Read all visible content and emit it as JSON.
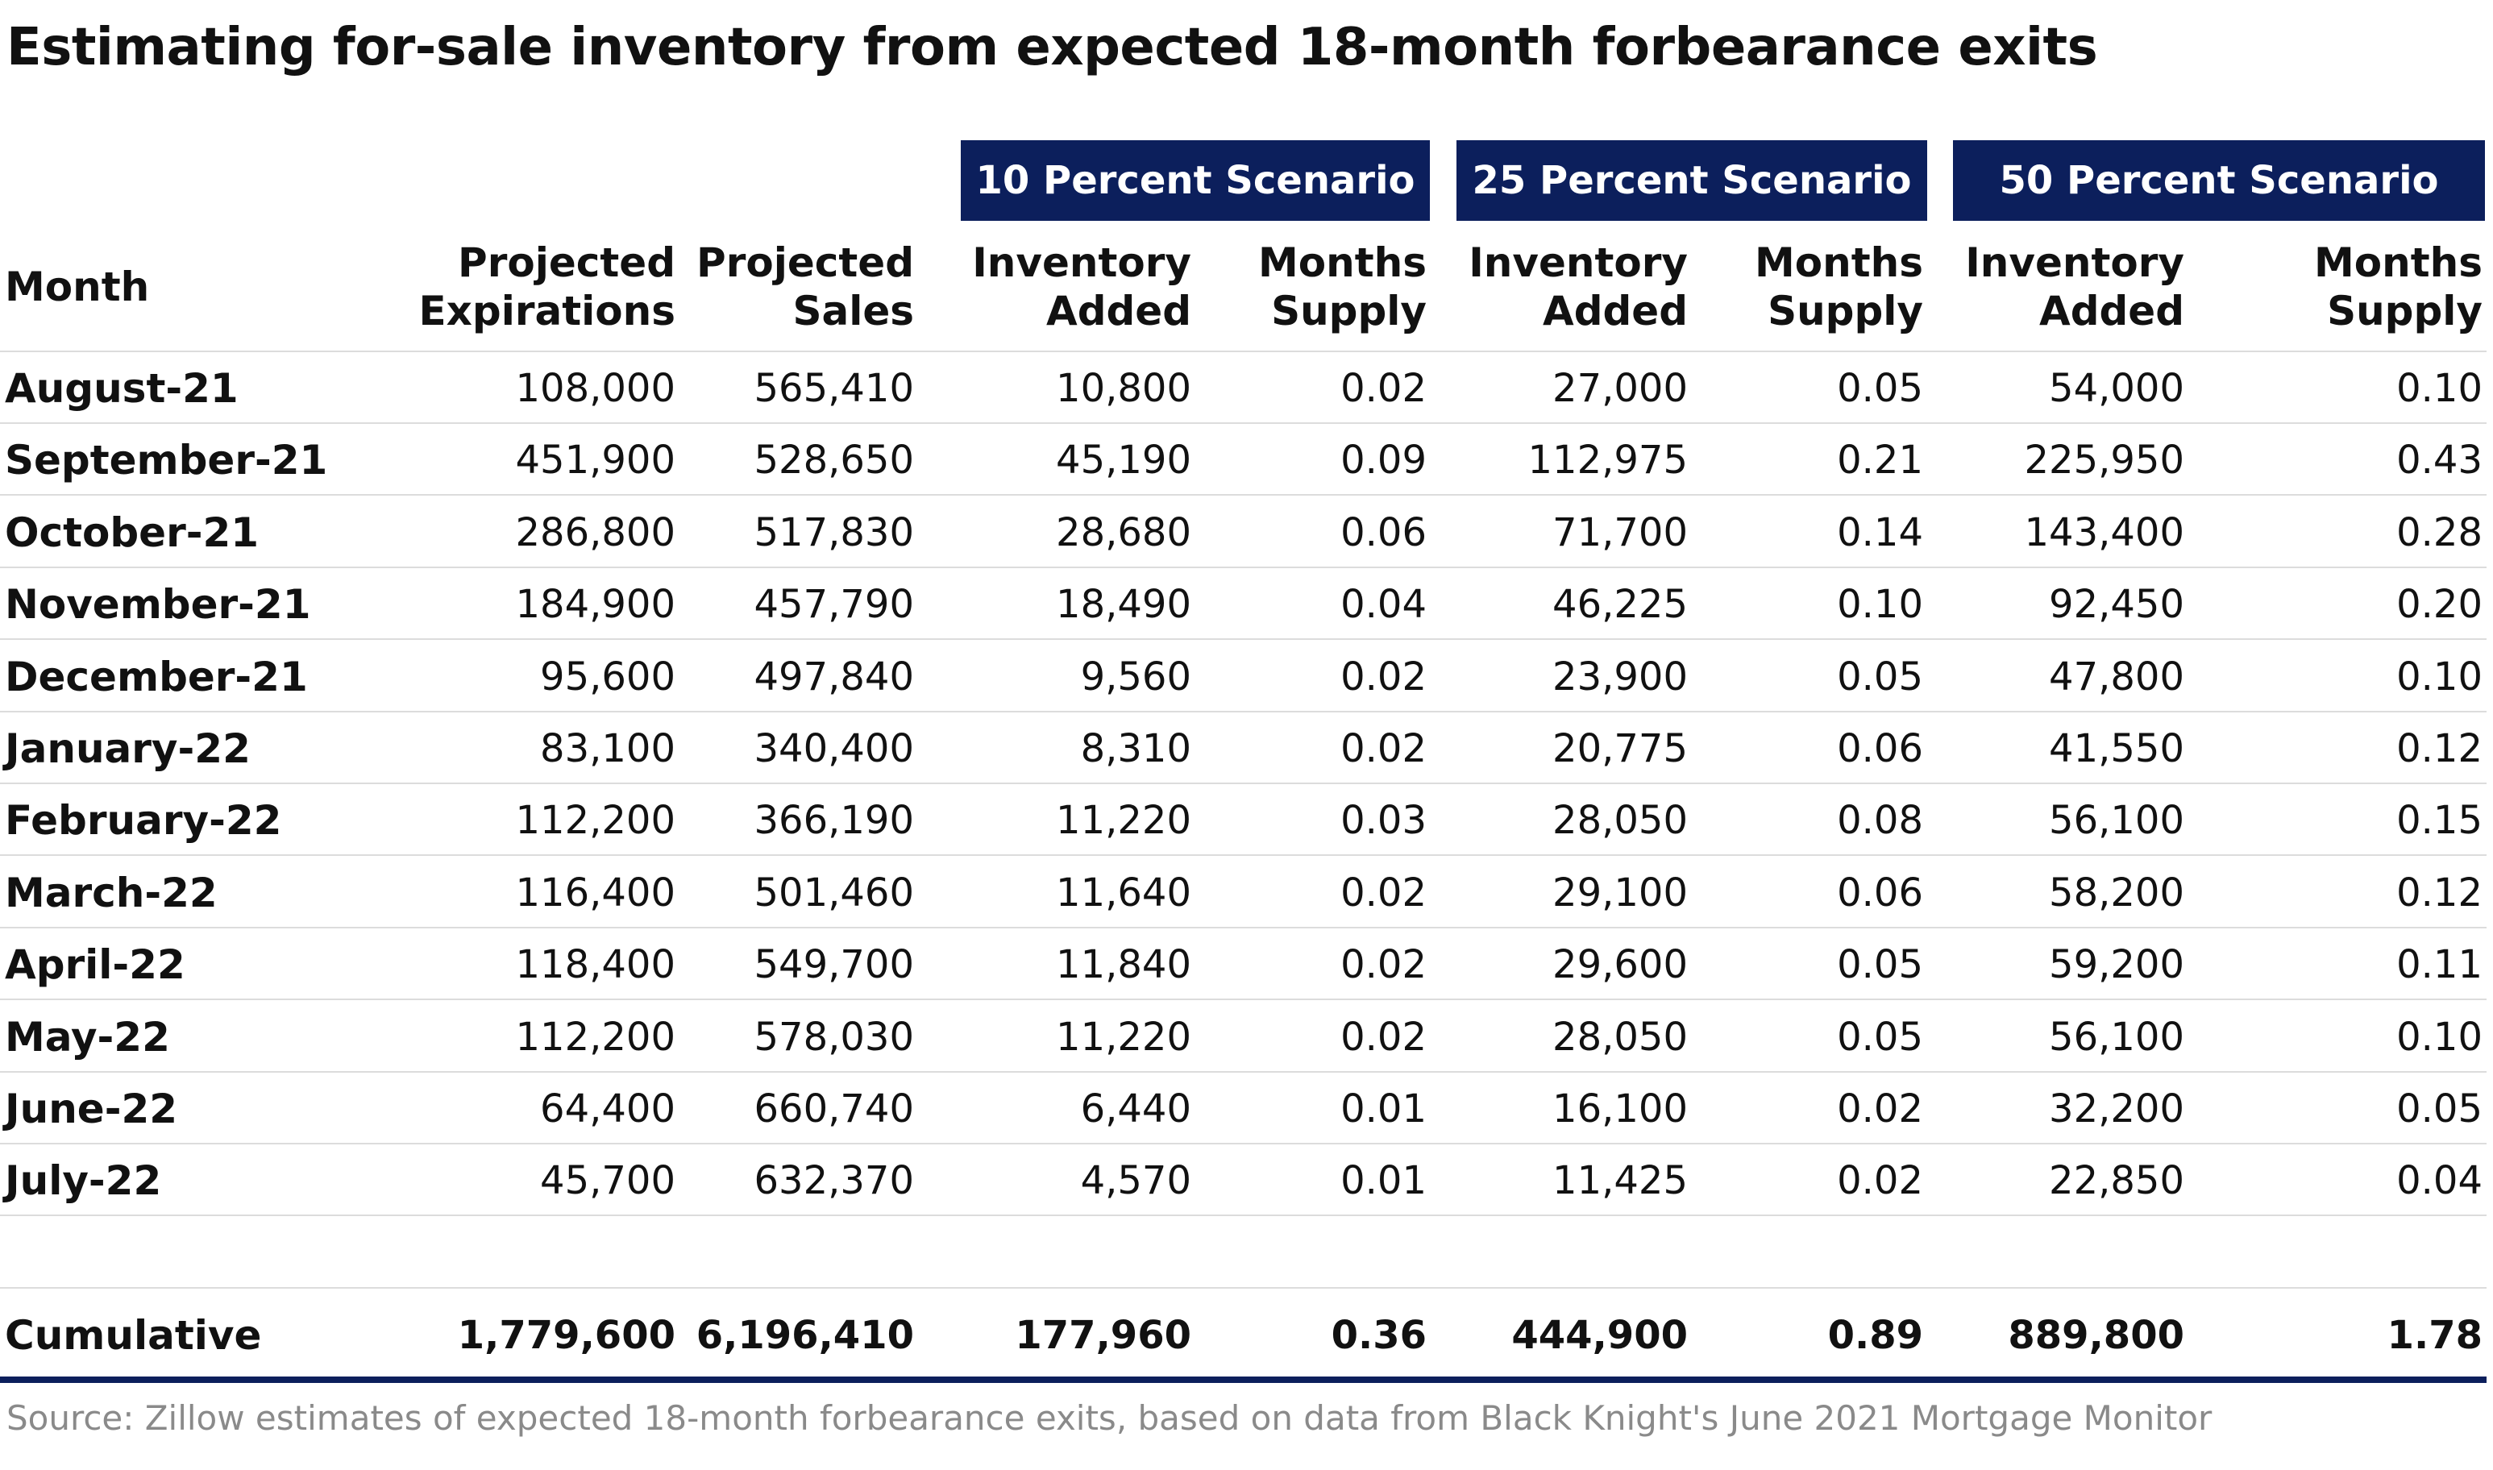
{
  "chart_data": {
    "type": "table",
    "title": "Estimating for-sale inventory from expected 18-month forbearance exits",
    "scenarios": [
      "10 Percent Scenario",
      "25 Percent Scenario",
      "50 Percent Scenario"
    ],
    "columns": [
      [
        "Month"
      ],
      [
        "Projected",
        "Expirations"
      ],
      [
        "Projected",
        "Sales"
      ],
      [
        "Inventory",
        "Added"
      ],
      [
        "Months",
        "Supply"
      ],
      [
        "Inventory",
        "Added"
      ],
      [
        "Months",
        "Supply"
      ],
      [
        "Inventory",
        "Added"
      ],
      [
        "Months",
        "Supply"
      ]
    ],
    "rows": [
      [
        "August-21",
        "108,000",
        "565,410",
        "10,800",
        "0.02",
        "27,000",
        "0.05",
        "54,000",
        "0.10"
      ],
      [
        "September-21",
        "451,900",
        "528,650",
        "45,190",
        "0.09",
        "112,975",
        "0.21",
        "225,950",
        "0.43"
      ],
      [
        "October-21",
        "286,800",
        "517,830",
        "28,680",
        "0.06",
        "71,700",
        "0.14",
        "143,400",
        "0.28"
      ],
      [
        "November-21",
        "184,900",
        "457,790",
        "18,490",
        "0.04",
        "46,225",
        "0.10",
        "92,450",
        "0.20"
      ],
      [
        "December-21",
        "95,600",
        "497,840",
        "9,560",
        "0.02",
        "23,900",
        "0.05",
        "47,800",
        "0.10"
      ],
      [
        "January-22",
        "83,100",
        "340,400",
        "8,310",
        "0.02",
        "20,775",
        "0.06",
        "41,550",
        "0.12"
      ],
      [
        "February-22",
        "112,200",
        "366,190",
        "11,220",
        "0.03",
        "28,050",
        "0.08",
        "56,100",
        "0.15"
      ],
      [
        "March-22",
        "116,400",
        "501,460",
        "11,640",
        "0.02",
        "29,100",
        "0.06",
        "58,200",
        "0.12"
      ],
      [
        "April-22",
        "118,400",
        "549,700",
        "11,840",
        "0.02",
        "29,600",
        "0.05",
        "59,200",
        "0.11"
      ],
      [
        "May-22",
        "112,200",
        "578,030",
        "11,220",
        "0.02",
        "28,050",
        "0.05",
        "56,100",
        "0.10"
      ],
      [
        "June-22",
        "64,400",
        "660,740",
        "6,440",
        "0.01",
        "16,100",
        "0.02",
        "32,200",
        "0.05"
      ],
      [
        "July-22",
        "45,700",
        "632,370",
        "4,570",
        "0.01",
        "11,425",
        "0.02",
        "22,850",
        "0.04"
      ]
    ],
    "total_row": [
      "Cumulative",
      "1,779,600",
      "6,196,410",
      "177,960",
      "0.36",
      "444,900",
      "0.89",
      "889,800",
      "1.78"
    ],
    "source": "Source: Zillow estimates of expected 18-month forbearance exits, based on data from Black Knight's June 2021 Mortgage Monitor"
  },
  "colors": {
    "header_fill": "#0c1f5c",
    "header_text": "#ffffff",
    "rule": "#dcdcdc",
    "bottom_rule": "#0c1f5c",
    "source_text": "#8a8a8a"
  }
}
